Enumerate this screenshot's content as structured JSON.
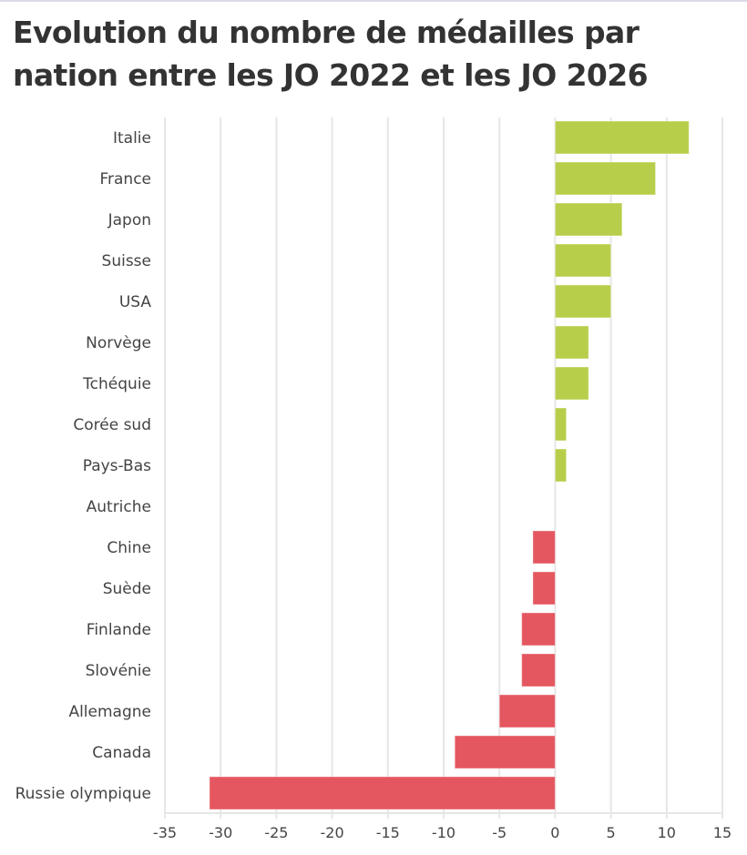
{
  "title": "Evolution du nombre de médailles par nation entre les JO 2022 et les JO 2026",
  "colors": {
    "positive": "#b5cc45",
    "negative": "#e3525b",
    "grid": "#e6e6e6",
    "text": "#444444"
  },
  "chart_data": {
    "type": "bar",
    "orientation": "horizontal",
    "title": "Evolution du nombre de médailles par nation entre les JO 2022 et les JO 2026",
    "xlabel": "",
    "ylabel": "",
    "categories": [
      "Italie",
      "France",
      "Japon",
      "Suisse",
      "USA",
      "Norvège",
      "Tchéquie",
      "Corée sud",
      "Pays-Bas",
      "Autriche",
      "Chine",
      "Suède",
      "Finlande",
      "Slovénie",
      "Allemagne",
      "Canada",
      "Russie olympique"
    ],
    "values": [
      12,
      9,
      6,
      5,
      5,
      3,
      3,
      1,
      1,
      0,
      -2,
      -2,
      -3,
      -3,
      -5,
      -9,
      -31
    ],
    "xlim": [
      -35,
      15
    ],
    "xticks": [
      -35,
      -30,
      -25,
      -20,
      -15,
      -10,
      -5,
      0,
      5,
      10,
      15
    ],
    "xtick_labels": [
      "-35",
      "-30",
      "-25",
      "-20",
      "-15",
      "-10",
      "-5",
      "0",
      "5",
      "10",
      "15"
    ],
    "grid": true,
    "legend": "none"
  }
}
